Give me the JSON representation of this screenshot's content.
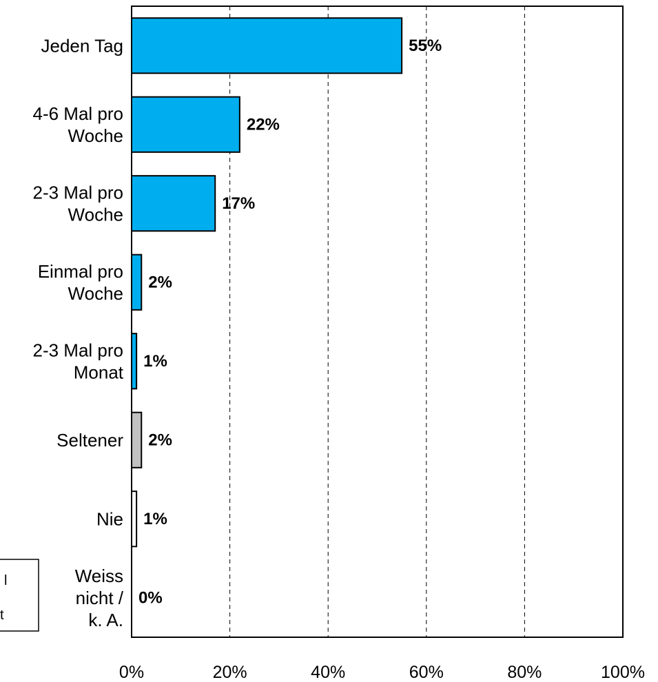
{
  "chart_data": {
    "type": "bar",
    "orientation": "horizontal",
    "categories": [
      [
        "Jeden Tag"
      ],
      [
        "4-6 Mal pro",
        "Woche"
      ],
      [
        "2-3 Mal pro",
        "Woche"
      ],
      [
        "Einmal pro",
        "Woche"
      ],
      [
        "2-3 Mal pro",
        "Monat"
      ],
      [
        "Seltener"
      ],
      [
        "Nie"
      ],
      [
        "Weiss",
        "nicht /",
        "k. A."
      ]
    ],
    "values": [
      55,
      22,
      17,
      2,
      1,
      2,
      1,
      0
    ],
    "value_labels": [
      "55%",
      "22%",
      "17%",
      "2%",
      "1%",
      "2%",
      "1%",
      "0%"
    ],
    "bar_colors": [
      "#00aeef",
      "#00aeef",
      "#00aeef",
      "#00aeef",
      "#00aeef",
      "#c0c0c0",
      "#ffffff",
      "#ffffff"
    ],
    "xlim": [
      0,
      100
    ],
    "x_ticks": [
      0,
      20,
      40,
      60,
      80,
      100
    ],
    "x_tick_labels": [
      "0%",
      "20%",
      "40%",
      "60%",
      "80%",
      "100%"
    ],
    "grid": "vertical dashed",
    "legend_fragments": [
      "l",
      "t"
    ]
  }
}
